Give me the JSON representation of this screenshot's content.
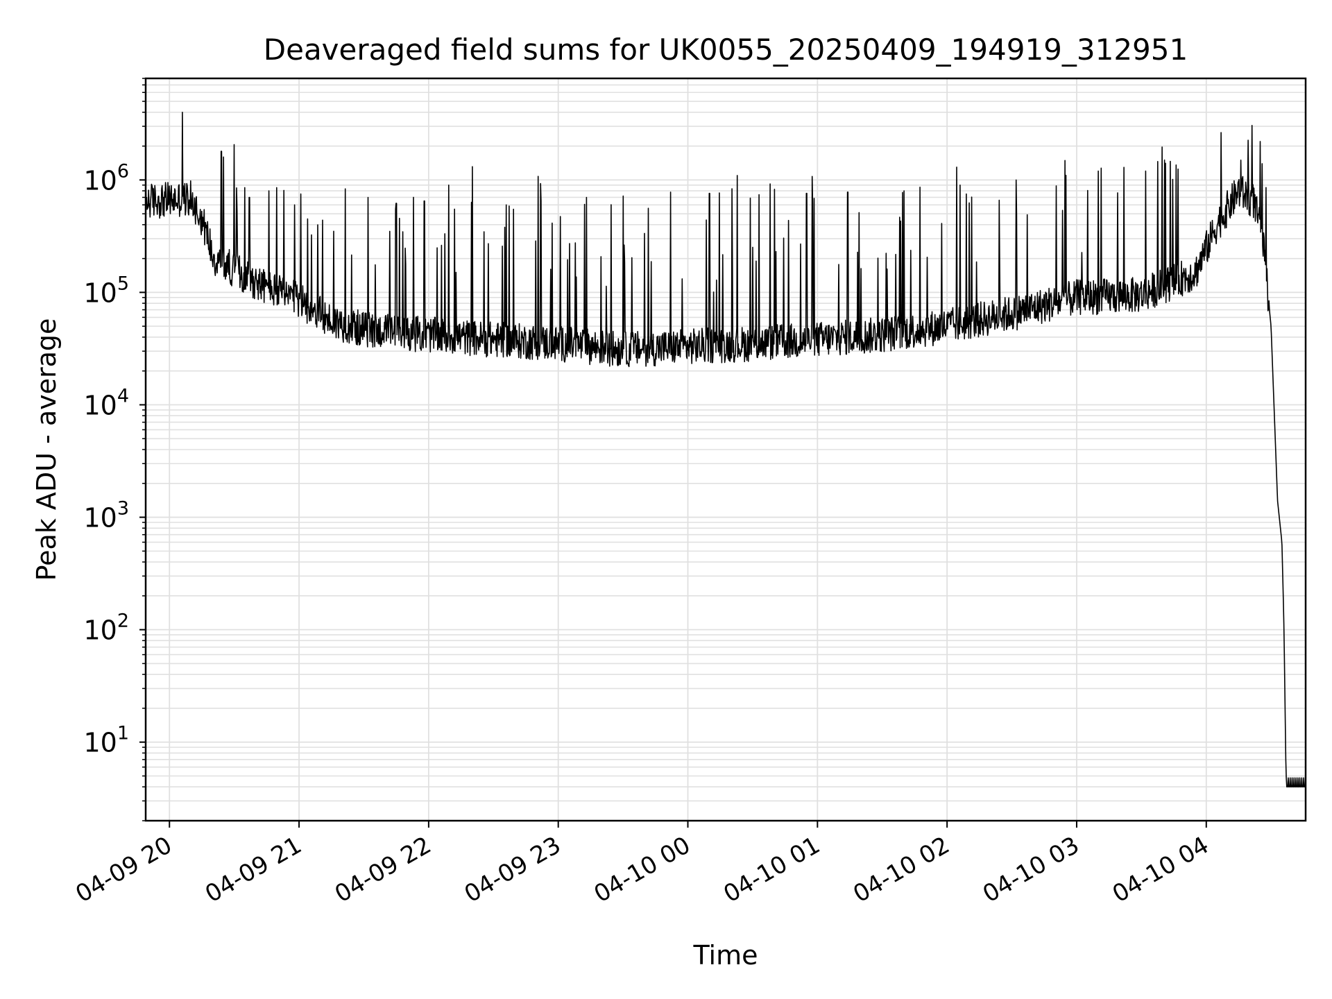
{
  "chart_data": {
    "type": "line",
    "title": "Deaveraged field sums for UK0055_20250409_194919_312951",
    "xlabel": "Time",
    "ylabel": "Peak ADU - average",
    "yscale": "log",
    "ylim": [
      2,
      8000000
    ],
    "xlim": [
      "2025-04-09 19:49",
      "2025-04-10 04:46"
    ],
    "grid": true,
    "line_color": "#000000",
    "grid_color": "#e0e0e0",
    "x_ticks": [
      {
        "label": "04-09 20",
        "value": "2025-04-09 20:00"
      },
      {
        "label": "04-09 21",
        "value": "2025-04-09 21:00"
      },
      {
        "label": "04-09 22",
        "value": "2025-04-09 22:00"
      },
      {
        "label": "04-09 23",
        "value": "2025-04-09 23:00"
      },
      {
        "label": "04-10 00",
        "value": "2025-04-10 00:00"
      },
      {
        "label": "04-10 01",
        "value": "2025-04-10 01:00"
      },
      {
        "label": "04-10 02",
        "value": "2025-04-10 02:00"
      },
      {
        "label": "04-10 03",
        "value": "2025-04-10 03:00"
      },
      {
        "label": "04-10 04",
        "value": "2025-04-10 04:00"
      }
    ],
    "y_ticks": [
      {
        "base": "10",
        "exp": "1",
        "value": 10
      },
      {
        "base": "10",
        "exp": "2",
        "value": 100
      },
      {
        "base": "10",
        "exp": "3",
        "value": 1000
      },
      {
        "base": "10",
        "exp": "4",
        "value": 10000
      },
      {
        "base": "10",
        "exp": "5",
        "value": 100000
      },
      {
        "base": "10",
        "exp": "6",
        "value": 1000000
      }
    ],
    "series": [
      {
        "baseline": [
          [
            "2025-04-09 19:49",
            650000
          ],
          [
            "2025-04-09 20:10",
            680000
          ],
          [
            "2025-04-09 20:15",
            450000
          ],
          [
            "2025-04-09 20:21",
            200000
          ],
          [
            "2025-04-09 20:30",
            160000
          ],
          [
            "2025-04-09 20:45",
            110000
          ],
          [
            "2025-04-09 21:00",
            85000
          ],
          [
            "2025-04-09 21:15",
            55000
          ],
          [
            "2025-04-09 21:30",
            47000
          ],
          [
            "2025-04-09 22:00",
            42000
          ],
          [
            "2025-04-09 22:30",
            38000
          ],
          [
            "2025-04-09 23:00",
            35000
          ],
          [
            "2025-04-09 23:30",
            31000
          ],
          [
            "2025-04-10 00:00",
            33000
          ],
          [
            "2025-04-10 00:30",
            35000
          ],
          [
            "2025-04-10 01:00",
            38000
          ],
          [
            "2025-04-10 01:30",
            42000
          ],
          [
            "2025-04-10 02:00",
            50000
          ],
          [
            "2025-04-10 02:30",
            65000
          ],
          [
            "2025-04-10 03:00",
            90000
          ],
          [
            "2025-04-10 03:30",
            95000
          ],
          [
            "2025-04-10 03:55",
            150000
          ],
          [
            "2025-04-10 04:05",
            400000
          ],
          [
            "2025-04-10 04:15",
            800000
          ],
          [
            "2025-04-10 04:22",
            650000
          ],
          [
            "2025-04-10 04:26",
            300000
          ],
          [
            "2025-04-10 04:30",
            50000
          ],
          [
            "2025-04-10 04:33",
            1400
          ],
          [
            "2025-04-10 04:35",
            600
          ],
          [
            "2025-04-10 04:36",
            100
          ],
          [
            "2025-04-10 04:37",
            4
          ],
          [
            "2025-04-10 04:46",
            4
          ]
        ],
        "peaks": [
          [
            "2025-04-09 20:06",
            4000000
          ],
          [
            "2025-04-09 20:24",
            1800000
          ],
          [
            "2025-04-09 20:25",
            1600000
          ],
          [
            "2025-04-09 20:31",
            850000
          ],
          [
            "2025-04-09 20:37",
            700000
          ],
          [
            "2025-04-09 20:46",
            800000
          ],
          [
            "2025-04-09 20:58",
            600000
          ],
          [
            "2025-04-09 21:04",
            450000
          ],
          [
            "2025-04-09 21:16",
            350000
          ],
          [
            "2025-04-09 21:32",
            700000
          ],
          [
            "2025-04-09 21:45",
            620000
          ],
          [
            "2025-04-09 21:58",
            650000
          ],
          [
            "2025-04-09 22:12",
            550000
          ],
          [
            "2025-04-09 22:36",
            600000
          ],
          [
            "2025-04-09 22:52",
            650000
          ],
          [
            "2025-04-09 23:13",
            700000
          ],
          [
            "2025-04-09 23:30",
            720000
          ],
          [
            "2025-04-09 23:52",
            780000
          ],
          [
            "2025-04-10 00:10",
            760000
          ],
          [
            "2025-04-10 00:33",
            740000
          ],
          [
            "2025-04-10 00:55",
            760000
          ],
          [
            "2025-04-10 01:14",
            780000
          ],
          [
            "2025-04-10 01:40",
            800000
          ],
          [
            "2025-04-10 02:06",
            900000
          ],
          [
            "2025-04-10 02:32",
            1000000
          ],
          [
            "2025-04-10 02:55",
            1100000
          ],
          [
            "2025-04-10 03:10",
            1200000
          ],
          [
            "2025-04-10 03:32",
            1200000
          ],
          [
            "2025-04-10 03:47",
            1250000
          ],
          [
            "2025-04-10 04:16",
            1500000
          ],
          [
            "2025-04-10 04:25",
            2200000
          ]
        ]
      }
    ]
  }
}
